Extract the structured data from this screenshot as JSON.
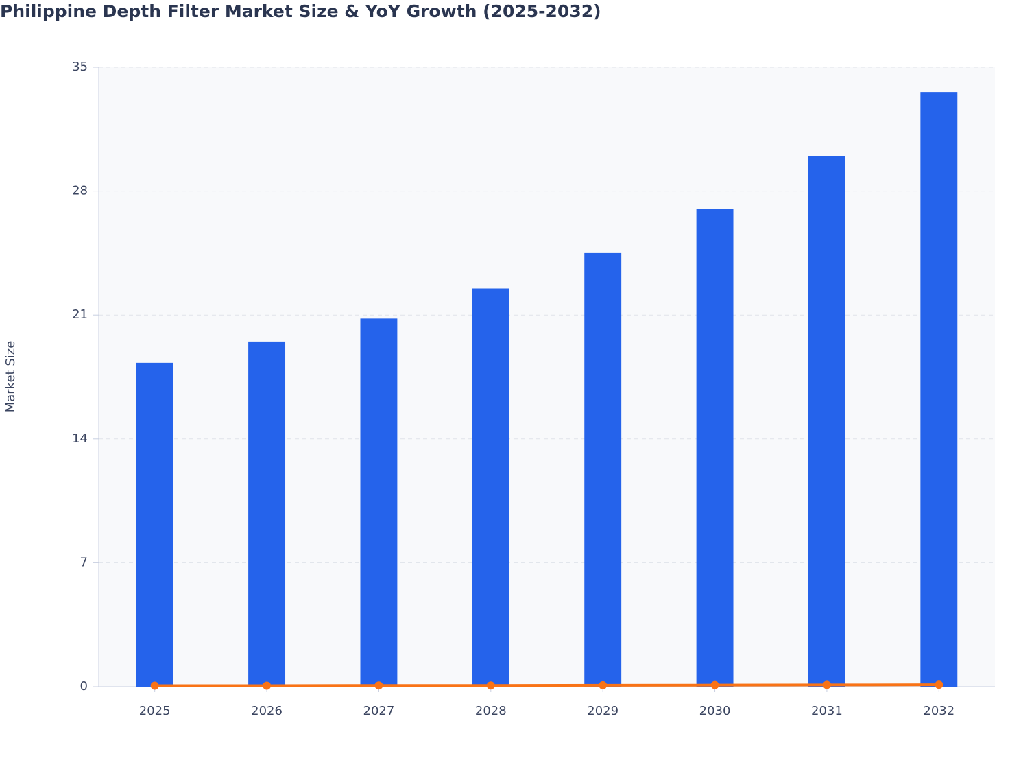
{
  "chart_data": {
    "type": "bar",
    "title": "Philippine Depth Filter Market Size & YoY Growth (2025-2032)",
    "y_label": "Market Size",
    "categories": [
      "2025",
      "2026",
      "2027",
      "2028",
      "2029",
      "2030",
      "2031",
      "2032"
    ],
    "series": [
      {
        "type": "bar",
        "color": "#2563eb",
        "values": [
          18.3,
          19.5,
          20.8,
          22.5,
          24.5,
          27.0,
          30.0,
          33.6
        ]
      },
      {
        "type": "line",
        "color": "#f97316",
        "values": [
          0.06,
          0.06,
          0.07,
          0.07,
          0.08,
          0.09,
          0.1,
          0.11
        ]
      }
    ],
    "ylim": [
      0,
      35
    ],
    "yticks": [
      0,
      7,
      14,
      21,
      28,
      35
    ],
    "grid": true
  }
}
